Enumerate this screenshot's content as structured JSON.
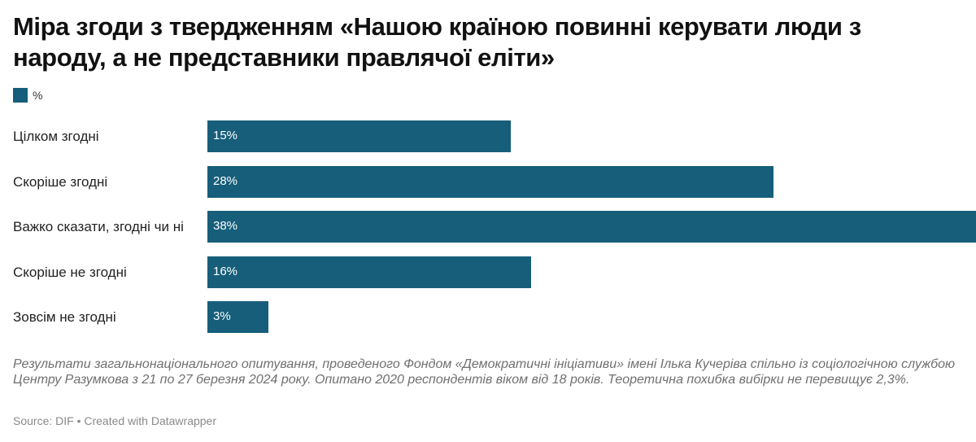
{
  "title": "Міра згоди з твердженням «Нашою країною повинні керувати люди з народу, а не представники правлячої еліти»",
  "legend": {
    "label": "%",
    "color": "#165e7a"
  },
  "chart_data": {
    "type": "bar",
    "orientation": "horizontal",
    "categories": [
      "Цілком згодні",
      "Скоріше згодні",
      "Важко сказати, згодні чи ні",
      "Скоріше не згодні",
      "Зовсім не згодні"
    ],
    "values": [
      15,
      28,
      38,
      16,
      3
    ],
    "value_labels": [
      "15%",
      "28%",
      "38%",
      "16%",
      "3%"
    ],
    "unit": "%",
    "xlim": [
      0,
      38
    ],
    "bar_color": "#165e7a"
  },
  "notes": "Результати загальнонаціонального опитування, проведеного Фондом «Демократичні ініціативи» імені Ілька Кучеріва спільно із соціологічною службою Центру Разумкова з 21 по 27 березня 2024 року. Опитано 2020 респондентів віком від 18 років. Теоретична похибка вибірки не перевищує 2,3%.",
  "source": "Source: DIF • Created with Datawrapper"
}
